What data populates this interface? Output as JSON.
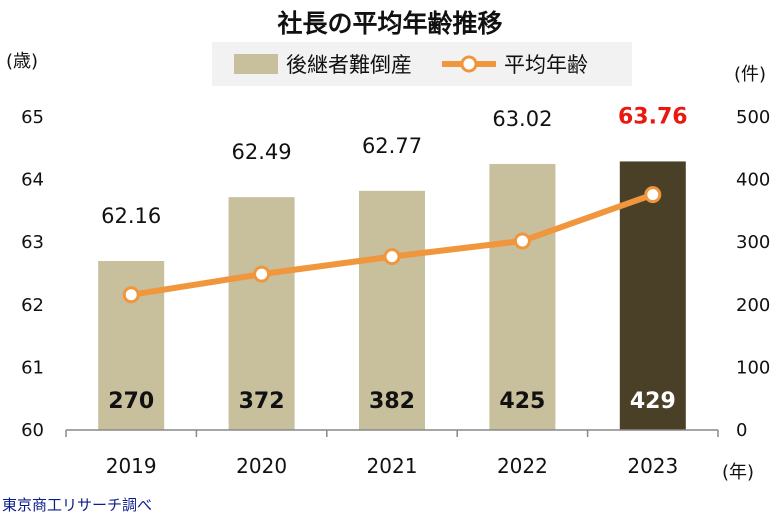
{
  "title": "社長の平均年齢推移",
  "legend": {
    "bar_label": "後継者難倒産",
    "line_label": "平均年齢"
  },
  "units": {
    "left": "(歳)",
    "right": "(件)",
    "x": "(年)"
  },
  "source": "東京商工リサーチ調べ",
  "colors": {
    "bar": "#c8bf9d",
    "bar_highlight": "#4a4028",
    "line": "#f0963c",
    "highlight_text": "#e8190e"
  },
  "chart_data": {
    "type": "bar",
    "title": "社長の平均年齢推移",
    "categories": [
      "2019",
      "2020",
      "2021",
      "2022",
      "2023"
    ],
    "series": [
      {
        "name": "後継者難倒産",
        "type": "bar",
        "axis": "right",
        "values": [
          270,
          372,
          382,
          425,
          429
        ],
        "labels": [
          "270",
          "372",
          "382",
          "425",
          "429"
        ]
      },
      {
        "name": "平均年齢",
        "type": "line",
        "axis": "left",
        "values": [
          62.16,
          62.49,
          62.77,
          63.02,
          63.76
        ],
        "labels": [
          "62.16",
          "62.49",
          "62.77",
          "63.02",
          "63.76"
        ]
      }
    ],
    "y_left": {
      "label": "(歳)",
      "range": [
        60,
        65
      ],
      "ticks": [
        "60",
        "61",
        "62",
        "63",
        "64",
        "65"
      ]
    },
    "y_right": {
      "label": "(件)",
      "range": [
        0,
        500
      ],
      "ticks": [
        "0",
        "100",
        "200",
        "300",
        "400",
        "500"
      ]
    },
    "xlabel": "(年)",
    "grid": false,
    "legend_position": "top"
  }
}
